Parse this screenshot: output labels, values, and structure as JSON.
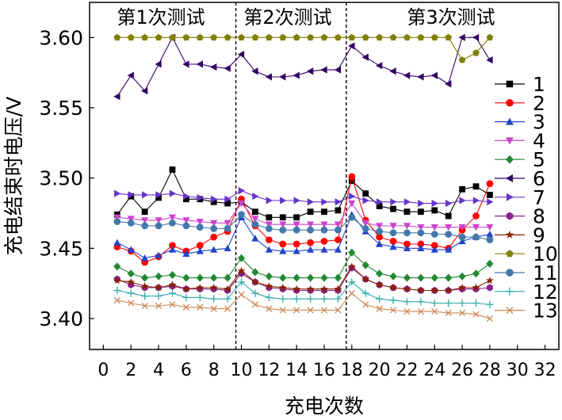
{
  "chart_data": {
    "type": "line",
    "xlabel": "充电次数",
    "ylabel": "充电结束时电压/V",
    "xlim": [
      -1,
      33
    ],
    "ylim": [
      3.378,
      3.625
    ],
    "xticks": [
      0,
      2,
      4,
      6,
      8,
      10,
      12,
      14,
      16,
      18,
      20,
      22,
      24,
      26,
      28,
      30,
      32
    ],
    "yticks": [
      3.4,
      3.45,
      3.5,
      3.55,
      3.6
    ],
    "yticklabels": [
      "3.40",
      "3.45",
      "3.50",
      "3.55",
      "3.60"
    ],
    "separators": [
      9.6,
      17.6
    ],
    "sections": [
      "第1次测试",
      "第2次测试",
      "第3次测试"
    ],
    "legend_position": "right",
    "series": [
      {
        "name": "1",
        "color": "#000000",
        "marker": "square",
        "x": [
          1,
          2,
          3,
          4,
          5,
          6,
          7,
          8,
          9,
          10,
          11,
          12,
          13,
          14,
          15,
          16,
          17,
          18,
          19,
          20,
          21,
          22,
          23,
          24,
          25,
          26,
          27,
          28
        ],
        "y": [
          3.474,
          3.487,
          3.476,
          3.486,
          3.506,
          3.485,
          3.485,
          3.483,
          3.482,
          3.483,
          3.476,
          3.472,
          3.472,
          3.472,
          3.476,
          3.476,
          3.477,
          3.498,
          3.489,
          3.48,
          3.478,
          3.476,
          3.476,
          3.477,
          3.473,
          3.492,
          3.494,
          3.488
        ]
      },
      {
        "name": "2",
        "color": "#ff0000",
        "marker": "circle",
        "x": [
          1,
          2,
          3,
          4,
          5,
          6,
          7,
          8,
          9,
          10,
          11,
          12,
          13,
          14,
          15,
          16,
          17,
          18,
          19,
          20,
          21,
          22,
          23,
          24,
          25,
          26,
          27,
          28
        ],
        "y": [
          3.451,
          3.448,
          3.44,
          3.444,
          3.452,
          3.448,
          3.452,
          3.458,
          3.462,
          3.485,
          3.466,
          3.456,
          3.453,
          3.453,
          3.454,
          3.455,
          3.456,
          3.501,
          3.47,
          3.458,
          3.455,
          3.453,
          3.453,
          3.452,
          3.45,
          3.463,
          3.473,
          3.496
        ]
      },
      {
        "name": "3",
        "color": "#2244cc",
        "marker": "triangle-up",
        "x": [
          1,
          2,
          3,
          4,
          5,
          6,
          7,
          8,
          9,
          10,
          11,
          12,
          13,
          14,
          15,
          16,
          17,
          18,
          19,
          20,
          21,
          22,
          23,
          24,
          25,
          26,
          27,
          28
        ],
        "y": [
          3.454,
          3.449,
          3.443,
          3.445,
          3.449,
          3.446,
          3.448,
          3.449,
          3.45,
          3.472,
          3.457,
          3.449,
          3.448,
          3.448,
          3.449,
          3.449,
          3.449,
          3.474,
          3.462,
          3.453,
          3.451,
          3.45,
          3.45,
          3.449,
          3.449,
          3.455,
          3.458,
          3.46
        ]
      },
      {
        "name": "4",
        "color": "#cc44cc",
        "marker": "triangle-down",
        "x": [
          1,
          2,
          3,
          4,
          5,
          6,
          7,
          8,
          9,
          10,
          11,
          12,
          13,
          14,
          15,
          16,
          17,
          18,
          19,
          20,
          21,
          22,
          23,
          24,
          25,
          26,
          27,
          28
        ],
        "y": [
          3.472,
          3.471,
          3.47,
          3.47,
          3.472,
          3.47,
          3.469,
          3.468,
          3.468,
          3.482,
          3.471,
          3.467,
          3.467,
          3.467,
          3.467,
          3.467,
          3.467,
          3.482,
          3.468,
          3.466,
          3.466,
          3.466,
          3.465,
          3.465,
          3.465,
          3.465,
          3.465,
          3.465
        ]
      },
      {
        "name": "5",
        "color": "#228833",
        "marker": "diamond",
        "x": [
          1,
          2,
          3,
          4,
          5,
          6,
          7,
          8,
          9,
          10,
          11,
          12,
          13,
          14,
          15,
          16,
          17,
          18,
          19,
          20,
          21,
          22,
          23,
          24,
          25,
          26,
          27,
          28
        ],
        "y": [
          3.437,
          3.432,
          3.429,
          3.43,
          3.431,
          3.429,
          3.429,
          3.429,
          3.429,
          3.443,
          3.433,
          3.43,
          3.429,
          3.429,
          3.429,
          3.429,
          3.429,
          3.447,
          3.438,
          3.432,
          3.43,
          3.429,
          3.429,
          3.429,
          3.429,
          3.43,
          3.432,
          3.439
        ]
      },
      {
        "name": "6",
        "color": "#330066",
        "marker": "triangle-left",
        "x": [
          1,
          2,
          3,
          4,
          5,
          6,
          7,
          8,
          9,
          10,
          11,
          12,
          13,
          14,
          15,
          16,
          17,
          18,
          19,
          20,
          21,
          22,
          23,
          24,
          25,
          26,
          27,
          28
        ],
        "y": [
          3.558,
          3.573,
          3.562,
          3.581,
          3.6,
          3.581,
          3.581,
          3.579,
          3.578,
          3.588,
          3.576,
          3.572,
          3.572,
          3.573,
          3.576,
          3.577,
          3.577,
          3.594,
          3.586,
          3.58,
          3.576,
          3.573,
          3.572,
          3.573,
          3.567,
          3.6,
          3.6,
          3.584
        ]
      },
      {
        "name": "7",
        "color": "#6633cc",
        "marker": "triangle-right",
        "x": [
          1,
          2,
          3,
          4,
          5,
          6,
          7,
          8,
          9,
          10,
          11,
          12,
          13,
          14,
          15,
          16,
          17,
          18,
          19,
          20,
          21,
          22,
          23,
          24,
          25,
          26,
          27,
          28
        ],
        "y": [
          3.489,
          3.488,
          3.488,
          3.488,
          3.489,
          3.487,
          3.486,
          3.485,
          3.485,
          3.491,
          3.487,
          3.484,
          3.484,
          3.484,
          3.483,
          3.483,
          3.483,
          3.487,
          3.484,
          3.483,
          3.483,
          3.483,
          3.482,
          3.482,
          3.482,
          3.484,
          3.484,
          3.483
        ]
      },
      {
        "name": "8",
        "color": "#882288",
        "marker": "hexagon",
        "x": [
          1,
          2,
          3,
          4,
          5,
          6,
          7,
          8,
          9,
          10,
          11,
          12,
          13,
          14,
          15,
          16,
          17,
          18,
          19,
          20,
          21,
          22,
          23,
          24,
          25,
          26,
          27,
          28
        ],
        "y": [
          3.428,
          3.424,
          3.422,
          3.422,
          3.423,
          3.421,
          3.421,
          3.421,
          3.42,
          3.432,
          3.426,
          3.422,
          3.421,
          3.42,
          3.42,
          3.42,
          3.42,
          3.436,
          3.428,
          3.424,
          3.422,
          3.421,
          3.42,
          3.42,
          3.42,
          3.421,
          3.421,
          3.422
        ]
      },
      {
        "name": "9",
        "color": "#882200",
        "marker": "star",
        "x": [
          1,
          2,
          3,
          4,
          5,
          6,
          7,
          8,
          9,
          10,
          11,
          12,
          13,
          14,
          15,
          16,
          17,
          18,
          19,
          20,
          21,
          22,
          23,
          24,
          25,
          26,
          27,
          28
        ],
        "y": [
          3.427,
          3.426,
          3.423,
          3.422,
          3.424,
          3.421,
          3.422,
          3.422,
          3.421,
          3.434,
          3.426,
          3.423,
          3.422,
          3.421,
          3.421,
          3.421,
          3.421,
          3.437,
          3.428,
          3.424,
          3.422,
          3.421,
          3.42,
          3.42,
          3.42,
          3.422,
          3.422,
          3.427
        ]
      },
      {
        "name": "10",
        "color": "#808000",
        "marker": "pentagon",
        "x": [
          1,
          2,
          3,
          4,
          5,
          6,
          7,
          8,
          9,
          10,
          11,
          12,
          13,
          14,
          15,
          16,
          17,
          18,
          19,
          20,
          21,
          22,
          23,
          24,
          25,
          26,
          27,
          28
        ],
        "y": [
          3.6,
          3.6,
          3.6,
          3.6,
          3.6,
          3.6,
          3.6,
          3.6,
          3.6,
          3.6,
          3.6,
          3.6,
          3.6,
          3.6,
          3.6,
          3.6,
          3.6,
          3.6,
          3.6,
          3.6,
          3.6,
          3.6,
          3.6,
          3.6,
          3.6,
          3.584,
          3.589,
          3.6
        ]
      },
      {
        "name": "11",
        "color": "#4477aa",
        "marker": "circle",
        "x": [
          1,
          2,
          3,
          4,
          5,
          6,
          7,
          8,
          9,
          10,
          11,
          12,
          13,
          14,
          15,
          16,
          17,
          18,
          19,
          20,
          21,
          22,
          23,
          24,
          25,
          26,
          27,
          28
        ],
        "y": [
          3.469,
          3.468,
          3.466,
          3.466,
          3.468,
          3.466,
          3.465,
          3.464,
          3.464,
          3.474,
          3.467,
          3.464,
          3.463,
          3.463,
          3.463,
          3.463,
          3.463,
          3.472,
          3.464,
          3.462,
          3.461,
          3.461,
          3.461,
          3.46,
          3.46,
          3.458,
          3.458,
          3.456
        ]
      },
      {
        "name": "12",
        "color": "#33aaaa",
        "marker": "plus",
        "x": [
          1,
          2,
          3,
          4,
          5,
          6,
          7,
          8,
          9,
          10,
          11,
          12,
          13,
          14,
          15,
          16,
          17,
          18,
          19,
          20,
          21,
          22,
          23,
          24,
          25,
          26,
          27,
          28
        ],
        "y": [
          3.42,
          3.418,
          3.416,
          3.416,
          3.418,
          3.415,
          3.415,
          3.414,
          3.414,
          3.426,
          3.418,
          3.415,
          3.414,
          3.414,
          3.414,
          3.414,
          3.414,
          3.426,
          3.418,
          3.414,
          3.413,
          3.412,
          3.412,
          3.411,
          3.411,
          3.411,
          3.411,
          3.41
        ]
      },
      {
        "name": "13",
        "color": "#cc8855",
        "marker": "cross",
        "x": [
          1,
          2,
          3,
          4,
          5,
          6,
          7,
          8,
          9,
          10,
          11,
          12,
          13,
          14,
          15,
          16,
          17,
          18,
          19,
          20,
          21,
          22,
          23,
          24,
          25,
          26,
          27,
          28
        ],
        "y": [
          3.413,
          3.411,
          3.409,
          3.409,
          3.41,
          3.408,
          3.408,
          3.407,
          3.407,
          3.417,
          3.41,
          3.407,
          3.406,
          3.406,
          3.406,
          3.406,
          3.406,
          3.418,
          3.41,
          3.407,
          3.406,
          3.405,
          3.405,
          3.405,
          3.404,
          3.404,
          3.403,
          3.4
        ]
      }
    ]
  }
}
